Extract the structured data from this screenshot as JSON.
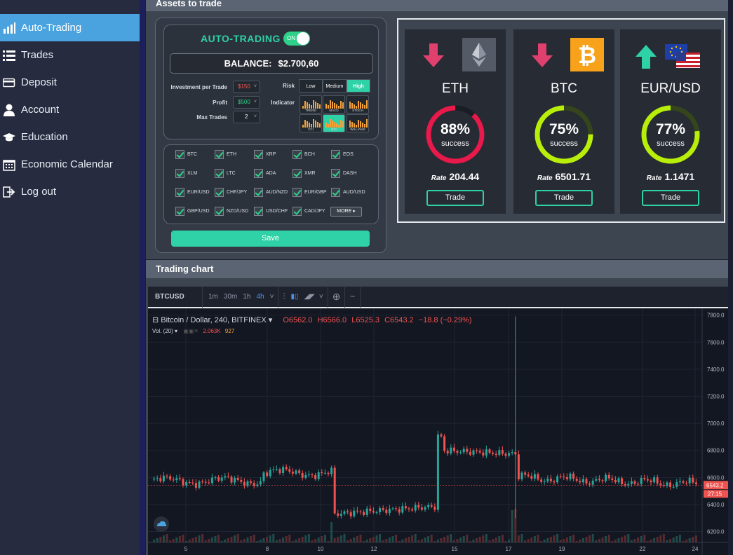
{
  "sidebar": {
    "items": [
      {
        "label": "Auto-Trading",
        "icon": "bar-chart-icon",
        "active": true
      },
      {
        "label": "Trades",
        "icon": "list-icon"
      },
      {
        "label": "Deposit",
        "icon": "credit-card-icon"
      },
      {
        "label": "Account",
        "icon": "user-icon"
      },
      {
        "label": "Education",
        "icon": "graduation-cap-icon"
      },
      {
        "label": "Economic Calendar",
        "icon": "calendar-icon"
      },
      {
        "label": "Log out",
        "icon": "sign-out-icon"
      }
    ]
  },
  "assets_panel": {
    "title": "Assets to trade"
  },
  "auto_trading": {
    "title": "AUTO-TRADING",
    "toggle_label": "ON",
    "balance_label": "BALANCE:",
    "balance_value": "$2.700,60",
    "investment_label": "Investment per Trade",
    "investment_value": "$150",
    "profit_label": "Profit",
    "profit_value": "$500",
    "max_trades_label": "Max Trades",
    "max_trades_value": "2",
    "risk_label": "Risk",
    "risk_options": [
      "Low",
      "Medium",
      "High"
    ],
    "indicator_label": "Indicator",
    "indicators": [
      "TREND",
      "MACD",
      "STOCH",
      "CCI",
      "RSI",
      "WILLIAMS"
    ],
    "pairs": [
      "BTC",
      "ETH",
      "XRP",
      "BCH",
      "EOS",
      "XLM",
      "LTC",
      "ADA",
      "XMR",
      "DASH",
      "EUR/USD",
      "CHF/JPY",
      "AUD/NZD",
      "EUR/GBP",
      "AUD/USD",
      "GBP/USD",
      "NZD/USD",
      "USD/CHF",
      "CAD/JPY"
    ],
    "more_label": "MORE",
    "save_label": "Save"
  },
  "assets": [
    {
      "name": "ETH",
      "direction": "down",
      "percent": "88%",
      "success_label": "success",
      "rate_label": "Rate",
      "rate": "204.44",
      "trade_label": "Trade",
      "ring_color": "#e8194b",
      "value": 0.88
    },
    {
      "name": "BTC",
      "direction": "down",
      "percent": "75%",
      "success_label": "success",
      "rate_label": "Rate",
      "rate": "6501.71",
      "trade_label": "Trade",
      "ring_color": "#b8ee0a",
      "value": 0.75
    },
    {
      "name": "EUR/USD",
      "direction": "up",
      "percent": "77%",
      "success_label": "success",
      "rate_label": "Rate",
      "rate": "1.1471",
      "trade_label": "Trade",
      "ring_color": "#b8ee0a",
      "value": 0.77
    }
  ],
  "chart_panel": {
    "title": "Trading chart"
  },
  "chart_toolbar": {
    "symbol": "BTCUSD",
    "timeframes": [
      "1m",
      "30m",
      "1h",
      "4h"
    ]
  },
  "chart_legend": {
    "title": "Bitcoin / Dollar, 240, BITFINEX",
    "open": "O6562.0",
    "high": "H6566.0",
    "low": "L6525.3",
    "close": "C6543.2",
    "change": "−18.8 (−0.29%)",
    "vol_label": "Vol. (20)",
    "vol_value": "2.063K",
    "vol_ma": "927"
  },
  "chart_data": {
    "type": "candlestick",
    "y_ticks": [
      "7800.0",
      "7600.0",
      "7400.0",
      "7200.0",
      "7000.0",
      "6800.0",
      "6600.0",
      "6400.0",
      "6200.0"
    ],
    "x_ticks": [
      "5",
      "8",
      "10",
      "12",
      "15",
      "17",
      "19",
      "22",
      "24"
    ],
    "last_price": "6543.2",
    "countdown": "27:15",
    "ylim": [
      6120,
      7850
    ]
  }
}
